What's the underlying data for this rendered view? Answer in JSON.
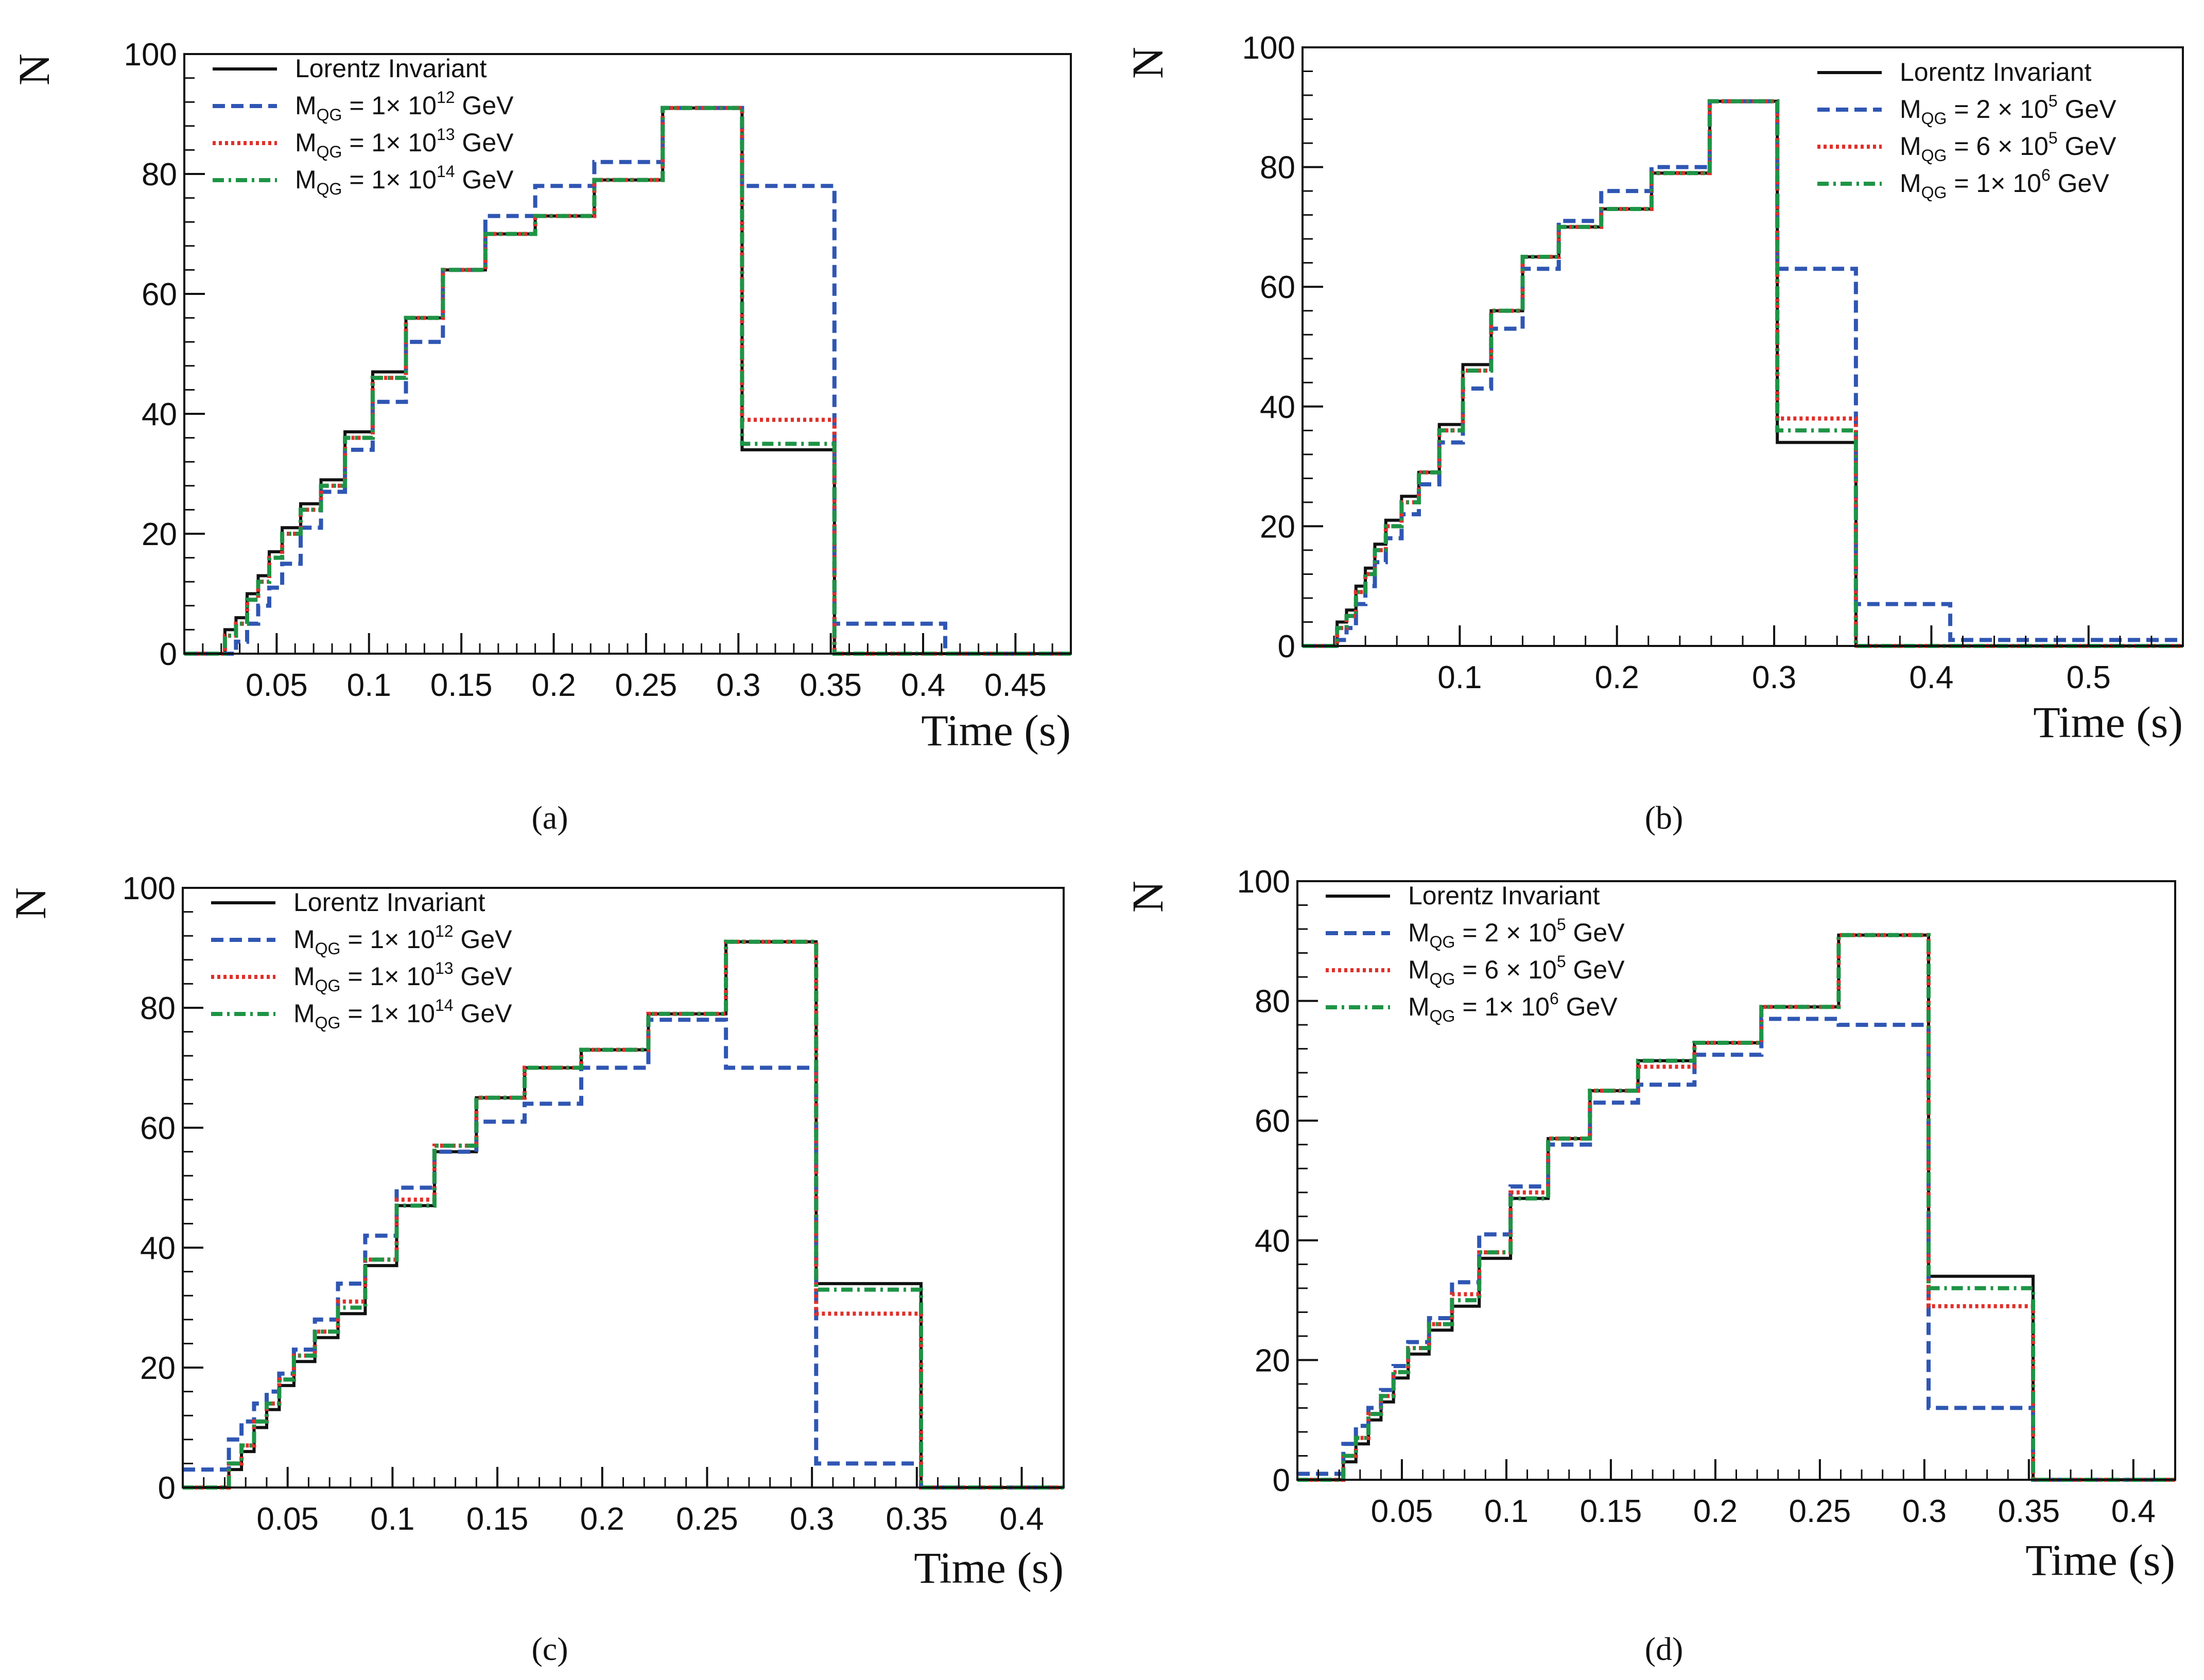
{
  "figure": {
    "y_axis_label": "N",
    "x_axis_label": "Time (s)",
    "colors": {
      "lorentz": "#111111",
      "blue": "#2f56b3",
      "red": "#e0302a",
      "green": "#1e9446",
      "frame": "#111111"
    }
  },
  "chart_data": [
    {
      "type": "line",
      "panel": "a",
      "caption": "(a)",
      "xlabel": "Time (s)",
      "ylabel": "N",
      "xlim": [
        0,
        0.48
      ],
      "ylim": [
        0,
        100
      ],
      "xticks": [
        0.05,
        0.1,
        0.15,
        0.2,
        0.25,
        0.3,
        0.35,
        0.4,
        0.45
      ],
      "xtick_labels": [
        "0.05",
        "0.1",
        "0.15",
        "0.2",
        "0.25",
        "0.3",
        "0.35",
        "0.4",
        "0.45"
      ],
      "yticks": [
        0,
        20,
        40,
        60,
        80,
        100
      ],
      "ytick_labels": [
        "0",
        "20",
        "40",
        "60",
        "80",
        "100"
      ],
      "x_edges": [
        0,
        0.022,
        0.028,
        0.034,
        0.04,
        0.046,
        0.053,
        0.063,
        0.074,
        0.087,
        0.102,
        0.12,
        0.14,
        0.163,
        0.19,
        0.222,
        0.259,
        0.302,
        0.352,
        0.412,
        0.48
      ],
      "legend": [
        {
          "name": "Lorentz Invariant",
          "label": "Lorentz Invariant",
          "color": "#111111",
          "dash": "solid"
        },
        {
          "name": "blue",
          "label_main": "M",
          "label_sub": "QG",
          "label_rest": " = 1× 10",
          "label_sup": "12",
          "label_unit": " GeV",
          "color": "#2f56b3",
          "dash": "dashed"
        },
        {
          "name": "red",
          "label_main": "M",
          "label_sub": "QG",
          "label_rest": " = 1× 10",
          "label_sup": "13",
          "label_unit": " GeV",
          "color": "#e0302a",
          "dash": "dotted"
        },
        {
          "name": "green",
          "label_main": "M",
          "label_sub": "QG",
          "label_rest": " = 1× 10",
          "label_sup": "14",
          "label_unit": " GeV",
          "color": "#1e9446",
          "dash": "dashdot"
        }
      ],
      "series": [
        {
          "name": "Lorentz Invariant",
          "values": [
            0,
            4,
            6,
            10,
            13,
            17,
            21,
            25,
            29,
            37,
            47,
            56,
            64,
            70,
            73,
            79,
            91,
            34,
            0,
            0
          ]
        },
        {
          "name": "M_QG = 1x10^12 GeV",
          "values": [
            0,
            0,
            2,
            5,
            8,
            11,
            15,
            21,
            27,
            34,
            42,
            52,
            64,
            73,
            78,
            82,
            91,
            78,
            5,
            0
          ]
        },
        {
          "name": "M_QG = 1x10^13 GeV",
          "values": [
            0,
            3,
            5,
            9,
            12,
            16,
            20,
            24,
            28,
            36,
            46,
            56,
            64,
            70,
            73,
            79,
            91,
            39,
            0,
            0
          ]
        },
        {
          "name": "M_QG = 1x10^14 GeV",
          "values": [
            0,
            3,
            5,
            9,
            12,
            16,
            20,
            24,
            28,
            36,
            46,
            56,
            64,
            70,
            73,
            79,
            91,
            35,
            0,
            0
          ]
        }
      ]
    },
    {
      "type": "line",
      "panel": "b",
      "caption": "(b)",
      "xlabel": "Time (s)",
      "ylabel": "N",
      "xlim": [
        0,
        0.56
      ],
      "ylim": [
        0,
        100
      ],
      "xticks": [
        0.1,
        0.2,
        0.3,
        0.4,
        0.5
      ],
      "xtick_labels": [
        "0.1",
        "0.2",
        "0.3",
        "0.4",
        "0.5"
      ],
      "yticks": [
        0,
        20,
        40,
        60,
        80,
        100
      ],
      "ytick_labels": [
        "0",
        "20",
        "40",
        "60",
        "80",
        "100"
      ],
      "x_edges": [
        0,
        0.022,
        0.028,
        0.034,
        0.04,
        0.046,
        0.053,
        0.063,
        0.074,
        0.087,
        0.102,
        0.12,
        0.14,
        0.163,
        0.19,
        0.222,
        0.259,
        0.302,
        0.352,
        0.412,
        0.56
      ],
      "legend": [
        {
          "name": "Lorentz Invariant",
          "label": "Lorentz Invariant",
          "color": "#111111",
          "dash": "solid"
        },
        {
          "name": "blue",
          "label_main": "M",
          "label_sub": "QG",
          "label_rest": " = 2 × 10",
          "label_sup": "5",
          "label_unit": " GeV",
          "color": "#2f56b3",
          "dash": "dashed"
        },
        {
          "name": "red",
          "label_main": "M",
          "label_sub": "QG",
          "label_rest": " = 6 × 10",
          "label_sup": "5",
          "label_unit": " GeV",
          "color": "#e0302a",
          "dash": "dotted"
        },
        {
          "name": "green",
          "label_main": "M",
          "label_sub": "QG",
          "label_rest": " = 1× 10",
          "label_sup": "6",
          "label_unit": " GeV",
          "color": "#1e9446",
          "dash": "dashdot"
        }
      ],
      "series": [
        {
          "name": "Lorentz Invariant",
          "values": [
            0,
            4,
            6,
            10,
            13,
            17,
            21,
            25,
            29,
            37,
            47,
            56,
            65,
            70,
            73,
            79,
            91,
            34,
            0,
            0
          ]
        },
        {
          "name": "M_QG = 2x10^5 GeV",
          "values": [
            0,
            1,
            3,
            7,
            10,
            14,
            18,
            22,
            27,
            34,
            43,
            53,
            63,
            71,
            76,
            80,
            91,
            63,
            7,
            1
          ]
        },
        {
          "name": "M_QG = 6x10^5 GeV",
          "values": [
            0,
            3,
            5,
            9,
            12,
            16,
            20,
            24,
            29,
            36,
            46,
            56,
            65,
            70,
            73,
            79,
            91,
            38,
            0,
            0
          ]
        },
        {
          "name": "M_QG = 1x10^6 GeV",
          "values": [
            0,
            3,
            5,
            9,
            12,
            16,
            20,
            24,
            29,
            36,
            46,
            56,
            65,
            70,
            73,
            79,
            91,
            36,
            0,
            0
          ]
        }
      ]
    },
    {
      "type": "line",
      "panel": "c",
      "caption": "(c)",
      "xlabel": "Time (s)",
      "ylabel": "N",
      "xlim": [
        0,
        0.42
      ],
      "ylim": [
        0,
        100
      ],
      "xticks": [
        0.05,
        0.1,
        0.15,
        0.2,
        0.25,
        0.3,
        0.35,
        0.4
      ],
      "xtick_labels": [
        "0.05",
        "0.1",
        "0.15",
        "0.2",
        "0.25",
        "0.3",
        "0.35",
        "0.4"
      ],
      "yticks": [
        0,
        20,
        40,
        60,
        80,
        100
      ],
      "ytick_labels": [
        "0",
        "20",
        "40",
        "60",
        "80",
        "100"
      ],
      "x_edges": [
        0,
        0.022,
        0.028,
        0.034,
        0.04,
        0.046,
        0.053,
        0.063,
        0.074,
        0.087,
        0.102,
        0.12,
        0.14,
        0.163,
        0.19,
        0.222,
        0.259,
        0.302,
        0.352,
        0.42
      ],
      "legend": [
        {
          "name": "Lorentz Invariant",
          "label": "Lorentz Invariant",
          "color": "#111111",
          "dash": "solid"
        },
        {
          "name": "blue",
          "label_main": "M",
          "label_sub": "QG",
          "label_rest": " = 1× 10",
          "label_sup": "12",
          "label_unit": " GeV",
          "color": "#2f56b3",
          "dash": "dashed"
        },
        {
          "name": "red",
          "label_main": "M",
          "label_sub": "QG",
          "label_rest": " = 1× 10",
          "label_sup": "13",
          "label_unit": " GeV",
          "color": "#e0302a",
          "dash": "dotted"
        },
        {
          "name": "green",
          "label_main": "M",
          "label_sub": "QG",
          "label_rest": " = 1× 10",
          "label_sup": "14",
          "label_unit": " GeV",
          "color": "#1e9446",
          "dash": "dashdot"
        }
      ],
      "series": [
        {
          "name": "Lorentz Invariant",
          "values": [
            0,
            3,
            6,
            10,
            13,
            17,
            21,
            25,
            29,
            37,
            47,
            56,
            65,
            70,
            73,
            79,
            91,
            34,
            0
          ]
        },
        {
          "name": "M_QG = 1x10^12 GeV",
          "values": [
            3,
            8,
            11,
            14,
            16,
            19,
            23,
            28,
            34,
            42,
            50,
            56,
            61,
            64,
            70,
            78,
            70,
            4,
            0
          ]
        },
        {
          "name": "M_QG = 1x10^13 GeV",
          "values": [
            0,
            4,
            7,
            11,
            14,
            18,
            22,
            26,
            31,
            38,
            48,
            57,
            65,
            70,
            73,
            79,
            91,
            29,
            0
          ]
        },
        {
          "name": "M_QG = 1x10^14 GeV",
          "values": [
            0,
            4,
            7,
            11,
            14,
            18,
            22,
            26,
            30,
            38,
            47,
            57,
            65,
            70,
            73,
            79,
            91,
            33,
            0
          ]
        }
      ]
    },
    {
      "type": "line",
      "panel": "d",
      "caption": "(d)",
      "xlabel": "Time (s)",
      "ylabel": "N",
      "xlim": [
        0,
        0.42
      ],
      "ylim": [
        0,
        100
      ],
      "xticks": [
        0.05,
        0.1,
        0.15,
        0.2,
        0.25,
        0.3,
        0.35,
        0.4
      ],
      "xtick_labels": [
        "0.05",
        "0.1",
        "0.15",
        "0.2",
        "0.25",
        "0.3",
        "0.35",
        "0.4"
      ],
      "yticks": [
        0,
        20,
        40,
        60,
        80,
        100
      ],
      "ytick_labels": [
        "0",
        "20",
        "40",
        "60",
        "80",
        "100"
      ],
      "x_edges": [
        0,
        0.022,
        0.028,
        0.034,
        0.04,
        0.046,
        0.053,
        0.063,
        0.074,
        0.087,
        0.102,
        0.12,
        0.14,
        0.163,
        0.19,
        0.222,
        0.259,
        0.302,
        0.352,
        0.42
      ],
      "legend": [
        {
          "name": "Lorentz Invariant",
          "label": "Lorentz Invariant",
          "color": "#111111",
          "dash": "solid"
        },
        {
          "name": "blue",
          "label_main": "M",
          "label_sub": "QG",
          "label_rest": " = 2 × 10",
          "label_sup": "5",
          "label_unit": " GeV",
          "color": "#2f56b3",
          "dash": "dashed"
        },
        {
          "name": "red",
          "label_main": "M",
          "label_sub": "QG",
          "label_rest": " = 6 × 10",
          "label_sup": "5",
          "label_unit": " GeV",
          "color": "#e0302a",
          "dash": "dotted"
        },
        {
          "name": "green",
          "label_main": "M",
          "label_sub": "QG",
          "label_rest": " = 1× 10",
          "label_sup": "6",
          "label_unit": " GeV",
          "color": "#1e9446",
          "dash": "dashdot"
        }
      ],
      "series": [
        {
          "name": "Lorentz Invariant",
          "values": [
            0,
            3,
            6,
            10,
            13,
            17,
            21,
            25,
            29,
            37,
            47,
            57,
            65,
            70,
            73,
            79,
            91,
            34,
            0
          ]
        },
        {
          "name": "M_QG = 2x10^5 GeV",
          "values": [
            1,
            6,
            9,
            12,
            15,
            19,
            23,
            27,
            33,
            41,
            49,
            56,
            63,
            66,
            71,
            77,
            76,
            12,
            0
          ]
        },
        {
          "name": "M_QG = 6x10^5 GeV",
          "values": [
            0,
            4,
            7,
            11,
            14,
            18,
            22,
            26,
            31,
            38,
            48,
            57,
            65,
            69,
            73,
            79,
            91,
            29,
            0
          ]
        },
        {
          "name": "M_QG = 1x10^6 GeV",
          "values": [
            0,
            4,
            7,
            11,
            14,
            18,
            22,
            26,
            30,
            38,
            47,
            57,
            65,
            70,
            73,
            79,
            91,
            32,
            0
          ]
        }
      ]
    }
  ]
}
